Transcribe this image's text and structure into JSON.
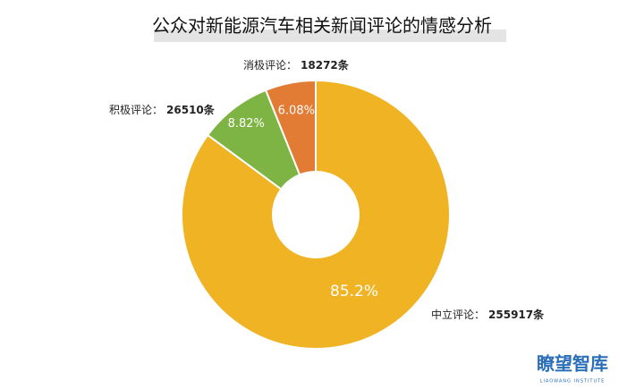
{
  "chart_data": {
    "type": "donut",
    "title": "公众对新能源汽车相关新闻评论的情感分析",
    "categories": [
      "中立评论：",
      "积极评论：",
      "消极评论："
    ],
    "values": [
      255917,
      26510,
      18272
    ],
    "value_labels": [
      "255917条",
      "26510条",
      "18272条"
    ],
    "percentages": [
      85.2,
      8.82,
      6.08
    ],
    "percentage_labels": [
      "85.2%",
      "8.82%",
      "6.08%"
    ],
    "colors": [
      "#f0b323",
      "#7db443",
      "#e27b33"
    ]
  },
  "watermark": {
    "name": "瞭望智库",
    "subtitle": "LIAOWANG INSTITUTE"
  }
}
